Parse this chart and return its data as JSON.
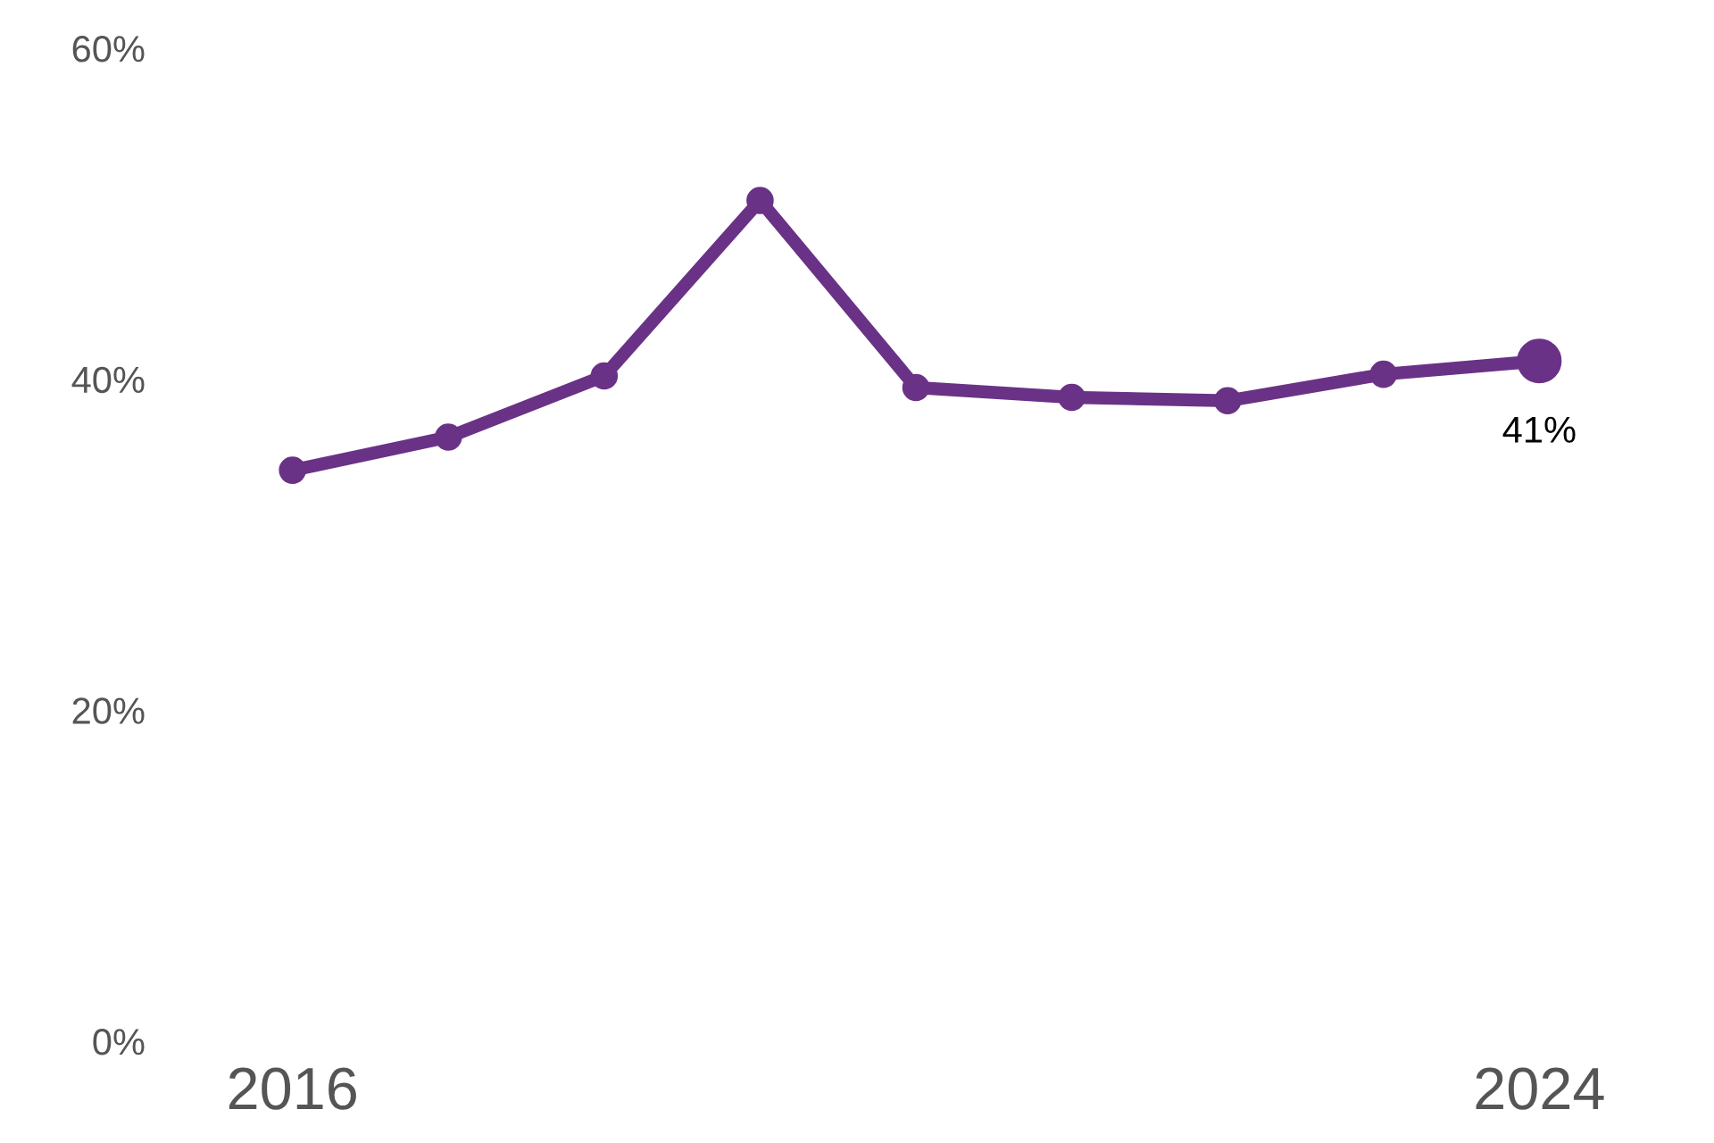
{
  "chart_data": {
    "type": "line",
    "categories": [
      "2016",
      null,
      null,
      null,
      null,
      null,
      null,
      null,
      "2024"
    ],
    "series": [
      {
        "color": "#6a3286",
        "values": [
          34.5,
          36.5,
          40.2,
          50.8,
          39.5,
          38.9,
          38.7,
          40.3,
          41.1
        ],
        "value_labels": [
          null,
          null,
          null,
          null,
          null,
          null,
          null,
          null,
          "41%"
        ]
      }
    ],
    "ylim": [
      0,
      60
    ],
    "yticks": [
      {
        "value": 0,
        "label": "0%"
      },
      {
        "value": 20,
        "label": "20%"
      },
      {
        "value": 40,
        "label": "40%"
      },
      {
        "value": 60,
        "label": "60%"
      }
    ],
    "marker": "circle",
    "line_style": "solid",
    "grid": false
  }
}
